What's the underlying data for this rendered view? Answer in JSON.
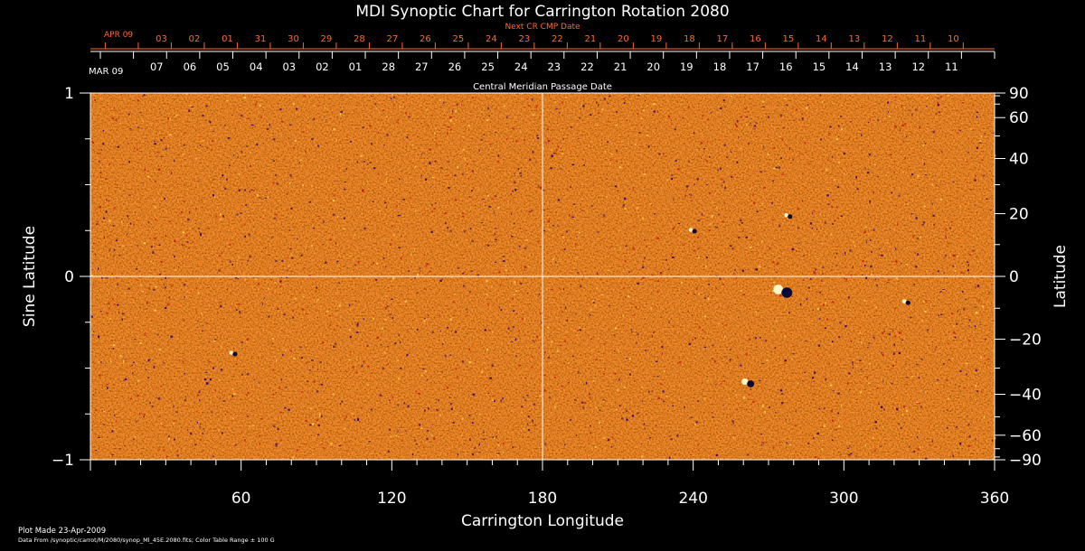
{
  "chart_data": {
    "type": "heatmap",
    "title": "MDI Synoptic Chart for Carrington Rotation 2080",
    "xlabel": "Carrington Longitude",
    "ylabel_left": "Sine Latitude",
    "ylabel_right": "Latitude",
    "xlim": [
      0,
      360
    ],
    "ylim": [
      -1,
      1
    ],
    "x_ticks": [
      60,
      120,
      180,
      240,
      300,
      360
    ],
    "y_ticks_left": [
      -1,
      0,
      1
    ],
    "y_ticks_right": [
      90,
      60,
      40,
      20,
      0,
      -20,
      -40,
      -60,
      -90
    ],
    "right_axis_scale": "latitude in degrees on sine-latitude axis",
    "gridlines": {
      "x": [
        180
      ],
      "y": [
        0
      ]
    },
    "color_table_range_gauss": 100,
    "background_color": "#ff4500",
    "colormap": [
      "#3a0a6a",
      "#c81c0a",
      "#ff4500",
      "#ff7a10",
      "#ffd050"
    ],
    "active_regions": [
      {
        "lon": 276,
        "sinlat": -0.08,
        "strength": "strong"
      },
      {
        "lon": 262,
        "sinlat": -0.58,
        "strength": "medium"
      },
      {
        "lon": 240,
        "sinlat": 0.25,
        "strength": "weak"
      },
      {
        "lon": 57,
        "sinlat": -0.42,
        "strength": "weak"
      },
      {
        "lon": 325,
        "sinlat": -0.14,
        "strength": "weak"
      },
      {
        "lon": 278,
        "sinlat": 0.33,
        "strength": "weak"
      }
    ],
    "cmp_axis": {
      "label": "Central Meridian Passage Date",
      "start_label": "MAR 09",
      "dates": [
        "07",
        "06",
        "05",
        "04",
        "03",
        "02",
        "01",
        "28",
        "27",
        "26",
        "25",
        "24",
        "23",
        "22",
        "21",
        "20",
        "19",
        "18",
        "17",
        "16",
        "15",
        "14",
        "13",
        "12",
        "11"
      ]
    },
    "next_cr_axis": {
      "label": "Next CR CMP Date",
      "start_label": "APR 09",
      "dates": [
        "03",
        "02",
        "01",
        "31",
        "30",
        "29",
        "28",
        "27",
        "26",
        "25",
        "24",
        "23",
        "22",
        "21",
        "20",
        "19",
        "18",
        "17",
        "16",
        "15",
        "14",
        "13",
        "12",
        "11",
        "10"
      ]
    }
  },
  "footer": {
    "plot_made": "Plot Made 23-Apr-2009",
    "data_source": "Data From /synoptic/carrot/M/2080/synop_Ml_45E.2080.fits; Color Table Range ± 100 G"
  }
}
